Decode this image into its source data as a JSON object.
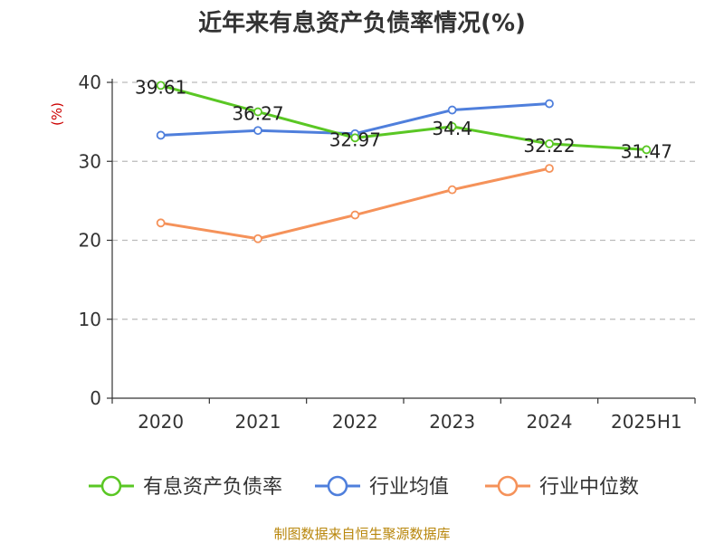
{
  "chart_data": {
    "type": "line",
    "title": "近年来有息资产负债率情况(%)",
    "ylabel": "(%)",
    "categories": [
      "2020",
      "2021",
      "2022",
      "2023",
      "2024",
      "2025H1"
    ],
    "ylim": [
      0,
      40
    ],
    "yticks": [
      0,
      10,
      20,
      30,
      40
    ],
    "grid": true,
    "legend_position": "bottom",
    "series": [
      {
        "name": "有息资产负债率",
        "color": "#5ac724",
        "values": [
          39.61,
          36.27,
          32.97,
          34.4,
          32.22,
          31.47
        ],
        "labels": [
          "39.61",
          "36.27",
          "32.97",
          "34.4",
          "32.22",
          "31.47"
        ]
      },
      {
        "name": "行业均值",
        "color": "#4f7fdc",
        "values": [
          33.3,
          33.9,
          33.5,
          36.5,
          37.3,
          null
        ],
        "labels": []
      },
      {
        "name": "行业中位数",
        "color": "#f5925a",
        "values": [
          22.2,
          20.2,
          23.2,
          26.4,
          29.1,
          null
        ],
        "labels": []
      }
    ],
    "source": "制图数据来自恒生聚源数据库"
  }
}
